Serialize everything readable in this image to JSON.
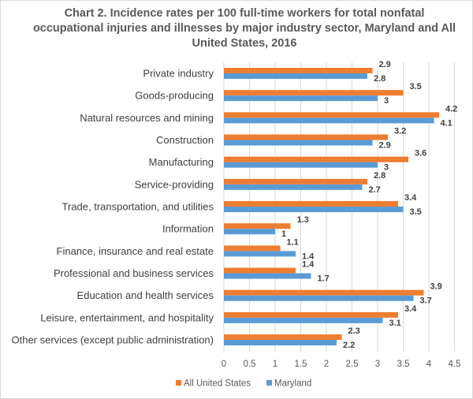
{
  "chart_data": {
    "type": "bar",
    "orientation": "horizontal",
    "title": "Chart 2. Incidence rates per 100 full-time workers for total nonfatal occupational injuries and illnesses by major industry sector, Maryland and All United States, 2016",
    "categories": [
      "Private industry",
      "Goods-producing",
      "Natural resources and mining",
      "Construction",
      "Manufacturing",
      "Service-providing",
      "Trade, transportation, and utilities",
      "Information",
      "Finance, insurance and real estate",
      "Professional and business services",
      "Education and health services",
      "Leisure, entertainment, and hospitality",
      "Other services (except public administration)"
    ],
    "series": [
      {
        "name": "All United States",
        "color": "#ed7d31",
        "values": [
          2.9,
          3.5,
          4.2,
          3.2,
          3.6,
          2.8,
          3.4,
          1.3,
          1.1,
          1.4,
          3.9,
          3.4,
          2.3
        ]
      },
      {
        "name": "Maryland",
        "color": "#5b9bd5",
        "values": [
          2.8,
          3,
          4.1,
          2.9,
          3,
          2.7,
          3.5,
          1,
          1.4,
          1.7,
          3.7,
          3.1,
          2.2
        ]
      }
    ],
    "xlim": [
      0,
      4.5
    ],
    "xticks": [
      "0",
      "0.5",
      "1",
      "1.5",
      "2",
      "2.5",
      "3",
      "3.5",
      "4",
      "4.5"
    ],
    "grid": true,
    "legend": "bottom",
    "xlabel": "",
    "ylabel": ""
  }
}
